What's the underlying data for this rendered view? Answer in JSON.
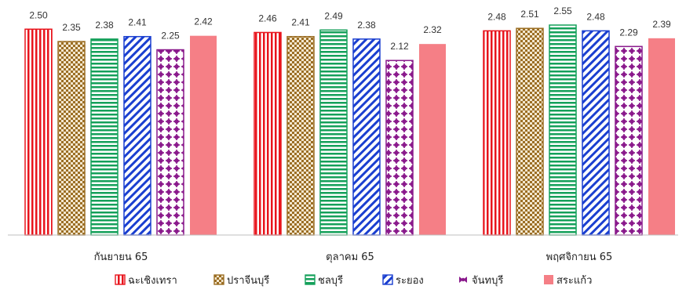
{
  "chart_data": {
    "type": "bar",
    "title": "",
    "xlabel": "",
    "ylabel": "",
    "ylim": [
      0,
      2.55
    ],
    "grid": false,
    "legend_position": "bottom",
    "categories": [
      "กันยายน 65",
      "ตุลาคม 65",
      "พฤศจิกายน 65"
    ],
    "series": [
      {
        "name": "ฉะเชิงเทรา",
        "values": [
          2.5,
          2.46,
          2.48
        ],
        "labels": [
          "2.50",
          "2.46",
          "2.48"
        ],
        "color": "#e8141c",
        "pattern": "vertical-lines"
      },
      {
        "name": "ปราจีนบุรี",
        "values": [
          2.35,
          2.41,
          2.51
        ],
        "labels": [
          "2.35",
          "2.41",
          "2.51"
        ],
        "color": "#9b6e24",
        "pattern": "checker"
      },
      {
        "name": "ชลบุรี",
        "values": [
          2.38,
          2.49,
          2.55
        ],
        "labels": [
          "2.38",
          "2.49",
          "2.55"
        ],
        "color": "#14a05a",
        "pattern": "horizontal-lines"
      },
      {
        "name": "ระยอง",
        "values": [
          2.41,
          2.38,
          2.48
        ],
        "labels": [
          "2.41",
          "2.38",
          "2.48"
        ],
        "color": "#1a3fd0",
        "pattern": "diagonal-lines"
      },
      {
        "name": "จันทบุรี",
        "values": [
          2.25,
          2.12,
          2.29
        ],
        "labels": [
          "2.25",
          "2.12",
          "2.29"
        ],
        "color": "#8a1a8c",
        "pattern": "dots"
      },
      {
        "name": "สระแก้ว",
        "values": [
          2.42,
          2.32,
          2.39
        ],
        "labels": [
          "2.42",
          "2.32",
          "2.39"
        ],
        "color": "#f57f86",
        "pattern": "solid"
      }
    ]
  }
}
